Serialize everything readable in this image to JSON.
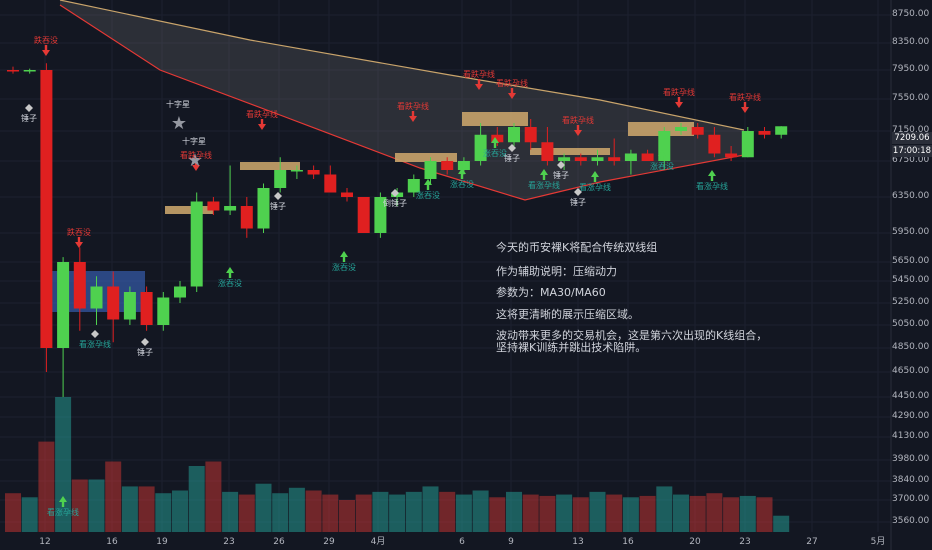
{
  "chart_data": {
    "type": "candlestick",
    "y_axis_ticks": [
      "8750.00",
      "8350.00",
      "7950.00",
      "7550.00",
      "7150.00",
      "6750.00",
      "6350.00",
      "5950.00",
      "5650.00",
      "5450.00",
      "5250.00",
      "5050.00",
      "4850.00",
      "4650.00",
      "4450.00",
      "4290.00",
      "4130.00",
      "3980.00",
      "3840.00",
      "3700.00",
      "3560.00"
    ],
    "x_axis_ticks": [
      "12",
      "16",
      "19",
      "23",
      "26",
      "29",
      "4月",
      "6",
      "9",
      "13",
      "16",
      "20",
      "23",
      "27",
      "5月"
    ],
    "current_price": "7209.06",
    "current_time": "17:00:18",
    "colors": {
      "up": "#26a69a",
      "down": "#e53935",
      "ma30": "#c9a46b",
      "ma60": "#e53935",
      "box_blue": "#3f6fd1",
      "box_tan": "#c8a36a"
    },
    "candles": [
      {
        "o": 7950,
        "h": 8000,
        "l": 7900,
        "c": 7930,
        "v": 3750
      },
      {
        "o": 7930,
        "h": 7970,
        "l": 7900,
        "c": 7950,
        "v": 3720
      },
      {
        "o": 7950,
        "h": 8050,
        "l": 4650,
        "c": 4850,
        "v": 4100
      },
      {
        "o": 4850,
        "h": 5700,
        "l": 4450,
        "c": 5650,
        "v": 4450
      },
      {
        "o": 5650,
        "h": 5800,
        "l": 5000,
        "c": 5200,
        "v": 3850
      },
      {
        "o": 5200,
        "h": 5500,
        "l": 5050,
        "c": 5400,
        "v": 3850
      },
      {
        "o": 5400,
        "h": 5550,
        "l": 4900,
        "c": 5100,
        "v": 3970
      },
      {
        "o": 5100,
        "h": 5400,
        "l": 5050,
        "c": 5350,
        "v": 3800
      },
      {
        "o": 5350,
        "h": 5400,
        "l": 5000,
        "c": 5050,
        "v": 3800
      },
      {
        "o": 5050,
        "h": 5350,
        "l": 5000,
        "c": 5300,
        "v": 3750
      },
      {
        "o": 5300,
        "h": 5450,
        "l": 5250,
        "c": 5400,
        "v": 3770
      },
      {
        "o": 5400,
        "h": 6400,
        "l": 5350,
        "c": 6300,
        "v": 3940
      },
      {
        "o": 6300,
        "h": 6350,
        "l": 6150,
        "c": 6200,
        "v": 3970
      },
      {
        "o": 6200,
        "h": 6700,
        "l": 6150,
        "c": 6250,
        "v": 3760
      },
      {
        "o": 6250,
        "h": 6350,
        "l": 5900,
        "c": 6000,
        "v": 3740
      },
      {
        "o": 6000,
        "h": 6500,
        "l": 5950,
        "c": 6450,
        "v": 3820
      },
      {
        "o": 6450,
        "h": 6800,
        "l": 6400,
        "c": 6650,
        "v": 3750
      },
      {
        "o": 6650,
        "h": 6700,
        "l": 6550,
        "c": 6650,
        "v": 3790
      },
      {
        "o": 6650,
        "h": 6700,
        "l": 6550,
        "c": 6600,
        "v": 3770
      },
      {
        "o": 6600,
        "h": 6700,
        "l": 6400,
        "c": 6400,
        "v": 3740
      },
      {
        "o": 6400,
        "h": 6450,
        "l": 6300,
        "c": 6350,
        "v": 3700
      },
      {
        "o": 6350,
        "h": 6350,
        "l": 5950,
        "c": 5950,
        "v": 3740
      },
      {
        "o": 5950,
        "h": 6400,
        "l": 5900,
        "c": 6350,
        "v": 3760
      },
      {
        "o": 6350,
        "h": 6450,
        "l": 6250,
        "c": 6400,
        "v": 3740
      },
      {
        "o": 6400,
        "h": 6600,
        "l": 6350,
        "c": 6550,
        "v": 3760
      },
      {
        "o": 6550,
        "h": 6800,
        "l": 6500,
        "c": 6750,
        "v": 3800
      },
      {
        "o": 6750,
        "h": 6800,
        "l": 6600,
        "c": 6650,
        "v": 3760
      },
      {
        "o": 6650,
        "h": 6800,
        "l": 6600,
        "c": 6750,
        "v": 3740
      },
      {
        "o": 6750,
        "h": 7250,
        "l": 6700,
        "c": 7100,
        "v": 3770
      },
      {
        "o": 7100,
        "h": 7200,
        "l": 6950,
        "c": 7000,
        "v": 3720
      },
      {
        "o": 7000,
        "h": 7250,
        "l": 6950,
        "c": 7200,
        "v": 3760
      },
      {
        "o": 7200,
        "h": 7300,
        "l": 6900,
        "c": 7000,
        "v": 3740
      },
      {
        "o": 7000,
        "h": 7200,
        "l": 6700,
        "c": 6750,
        "v": 3730
      },
      {
        "o": 6750,
        "h": 6850,
        "l": 6650,
        "c": 6800,
        "v": 3740
      },
      {
        "o": 6800,
        "h": 6850,
        "l": 6700,
        "c": 6750,
        "v": 3720
      },
      {
        "o": 6750,
        "h": 6900,
        "l": 6700,
        "c": 6800,
        "v": 3760
      },
      {
        "o": 6800,
        "h": 7050,
        "l": 6700,
        "c": 6750,
        "v": 3740
      },
      {
        "o": 6750,
        "h": 6900,
        "l": 6600,
        "c": 6850,
        "v": 3720
      },
      {
        "o": 6850,
        "h": 6900,
        "l": 6750,
        "c": 6750,
        "v": 3730
      },
      {
        "o": 6750,
        "h": 7200,
        "l": 6650,
        "c": 7150,
        "v": 3800
      },
      {
        "o": 7150,
        "h": 7250,
        "l": 7100,
        "c": 7200,
        "v": 3740
      },
      {
        "o": 7200,
        "h": 7250,
        "l": 7050,
        "c": 7100,
        "v": 3730
      },
      {
        "o": 7100,
        "h": 7200,
        "l": 6800,
        "c": 6850,
        "v": 3750
      },
      {
        "o": 6850,
        "h": 6950,
        "l": 6750,
        "c": 6800,
        "v": 3720
      },
      {
        "o": 6800,
        "h": 7200,
        "l": 6800,
        "c": 7150,
        "v": 3730
      },
      {
        "o": 7150,
        "h": 7200,
        "l": 7050,
        "c": 7100,
        "v": 3720
      },
      {
        "o": 7100,
        "h": 7210,
        "l": 7050,
        "c": 7209,
        "v": 3600
      }
    ]
  },
  "annotation": {
    "line1": "今天的币安裸K将配合传统双线组",
    "line2": "作为辅助说明：压缩动力",
    "line3": "参数为：MA30/MA60",
    "line4": "这将更清晰的展示压缩区域。",
    "line5": "波动带来更多的交易机会，这是第六次出现的K线组合，",
    "line6": "坚持裸K训练并跳出技术陷阱。"
  },
  "markers": [
    {
      "text": "跌吞没",
      "color": "red"
    },
    {
      "text": "锤子",
      "color": "white"
    },
    {
      "text": "跌吞没",
      "color": "red"
    },
    {
      "text": "看涨孕线",
      "color": "grn"
    },
    {
      "text": "看涨孕线",
      "color": "grn"
    },
    {
      "text": "锤子",
      "color": "white"
    },
    {
      "text": "十字星",
      "color": "white"
    },
    {
      "text": "十字星",
      "color": "white"
    },
    {
      "text": "看跌孕线",
      "color": "red"
    },
    {
      "text": "涨吞没",
      "color": "grn"
    },
    {
      "text": "看跌孕线",
      "color": "red"
    },
    {
      "text": "锤子",
      "color": "white"
    },
    {
      "text": "涨吞没",
      "color": "grn"
    },
    {
      "text": "倒锤子",
      "color": "white"
    },
    {
      "text": "看跌孕线",
      "color": "red"
    },
    {
      "text": "涨吞没",
      "color": "grn"
    },
    {
      "text": "涨吞没",
      "color": "grn"
    },
    {
      "text": "看跌孕线",
      "color": "red"
    },
    {
      "text": "看跌孕线",
      "color": "red"
    },
    {
      "text": "涨吞没",
      "color": "grn"
    },
    {
      "text": "锤子",
      "color": "white"
    },
    {
      "text": "看跌孕线",
      "color": "red"
    },
    {
      "text": "看涨孕线",
      "color": "grn"
    },
    {
      "text": "看涨孕线",
      "color": "grn"
    },
    {
      "text": "锤子",
      "color": "white"
    },
    {
      "text": "锤子",
      "color": "white"
    },
    {
      "text": "看跌孕线",
      "color": "red"
    },
    {
      "text": "涨吞没",
      "color": "grn"
    },
    {
      "text": "看涨孕线",
      "color": "grn"
    },
    {
      "text": "看跌孕线",
      "color": "red"
    }
  ]
}
